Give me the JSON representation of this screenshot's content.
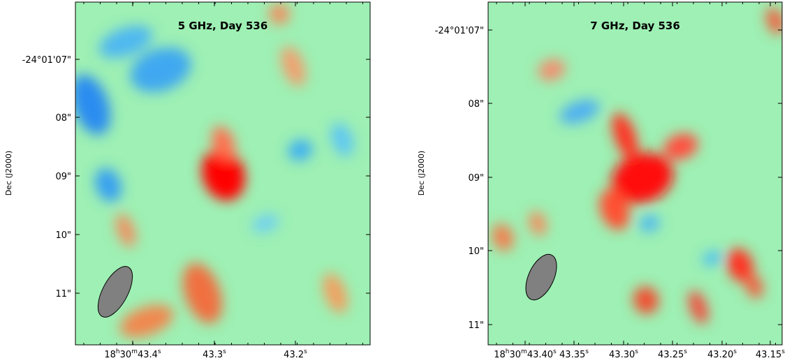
{
  "panels": [
    {
      "title": "5 GHz, Day 536",
      "y_label": "Dec (J2000)",
      "y_ticks": [
        "-24°01'07\"",
        "08\"",
        "09\"",
        "10\"",
        "11\""
      ],
      "x_ticks": [
        [
          "18",
          "h",
          "30",
          "m",
          "43.4",
          "s"
        ],
        [
          "43.3",
          "s"
        ],
        [
          "43.2",
          "s"
        ]
      ]
    },
    {
      "title": "7 GHz, Day 536",
      "y_label": "Dec (J2000)",
      "y_ticks": [
        "-24°01'07\"",
        "08\"",
        "09\"",
        "10\"",
        "11\""
      ],
      "x_ticks": [
        [
          "18",
          "h",
          "30",
          "m",
          "43.40",
          "s"
        ],
        [
          "43.35",
          "s"
        ],
        [
          "43.30",
          "s"
        ],
        [
          "43.25",
          "s"
        ],
        [
          "43.20",
          "s"
        ],
        [
          "43.15",
          "s"
        ]
      ]
    }
  ]
}
